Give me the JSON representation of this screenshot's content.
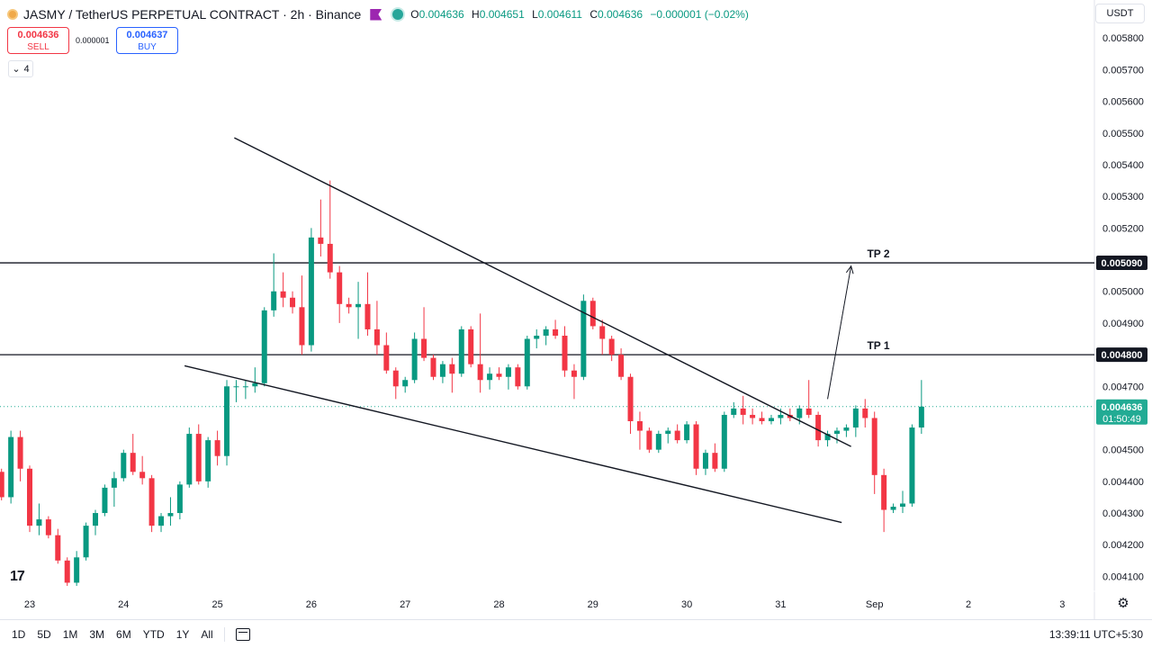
{
  "header": {
    "symbol_title": "JASMY / TetherUS PERPETUAL CONTRACT · 2h · Binance",
    "ohlc": [
      {
        "key": "O",
        "value": "0.004636"
      },
      {
        "key": "H",
        "value": "0.004651"
      },
      {
        "key": "L",
        "value": "0.004611"
      },
      {
        "key": "C",
        "value": "0.004636"
      },
      {
        "key": "",
        "value": "−0.000001 (−0.02%)"
      }
    ],
    "up_color": "#089981",
    "down_color": "#f23645"
  },
  "trade": {
    "sell_price": "0.004636",
    "sell_label": "SELL",
    "spread": "0.000001",
    "buy_price": "0.004637",
    "buy_label": "BUY"
  },
  "indicators_count": "4",
  "currency": "USDT",
  "bottom_bar": {
    "ranges": [
      "1D",
      "5D",
      "1M",
      "3M",
      "6M",
      "YTD",
      "1Y",
      "All"
    ],
    "clock": "13:39:11 UTC+5:30"
  },
  "chart_data": {
    "type": "candlestick",
    "timeframe": "2h",
    "x_ticks": [
      "23",
      "24",
      "25",
      "26",
      "27",
      "28",
      "29",
      "30",
      "31",
      "Sep",
      "2",
      "3"
    ],
    "y_ticks": [
      "0.005800",
      "0.005700",
      "0.005600",
      "0.005500",
      "0.005400",
      "0.005300",
      "0.005200",
      "0.005000",
      "0.004900",
      "0.004700",
      "0.004500",
      "0.004400",
      "0.004300",
      "0.004200",
      "0.004100"
    ],
    "ylim": [
      0.004,
      0.00592
    ],
    "grid": false,
    "horizontal_lines": [
      {
        "label": "TP 2",
        "price": 0.00509,
        "price_label": "0.005090"
      },
      {
        "label": "TP 1",
        "price": 0.0048,
        "price_label": "0.004800"
      }
    ],
    "current_price": {
      "price": 0.004636,
      "label": "0.004636",
      "countdown": "01:50:49",
      "color": "#22ab94"
    },
    "trendlines": [
      {
        "name": "upper",
        "from": {
          "day": 25.18,
          "price": 0.005485
        },
        "to": {
          "day": 31.75,
          "price": 0.00451
        }
      },
      {
        "name": "lower",
        "from": {
          "day": 24.65,
          "price": 0.004765
        },
        "to": {
          "day": 31.65,
          "price": 0.00427
        }
      }
    ],
    "projection_arrow": {
      "from": {
        "day": 31.5,
        "price": 0.00466
      },
      "to": {
        "day": 31.75,
        "price": 0.00508
      }
    },
    "candles": [
      [
        22.7,
        0.00443,
        0.00444,
        0.00434,
        0.00435
      ],
      [
        22.8,
        0.00435,
        0.00456,
        0.00433,
        0.00454
      ],
      [
        22.9,
        0.00454,
        0.00456,
        0.0044,
        0.00444
      ],
      [
        23.0,
        0.00444,
        0.00445,
        0.00424,
        0.00426
      ],
      [
        23.1,
        0.00426,
        0.00433,
        0.00423,
        0.00428
      ],
      [
        23.2,
        0.00428,
        0.00429,
        0.00422,
        0.00423
      ],
      [
        23.3,
        0.00423,
        0.00425,
        0.00414,
        0.00415
      ],
      [
        23.4,
        0.00415,
        0.00416,
        0.00407,
        0.00408
      ],
      [
        23.5,
        0.00408,
        0.00418,
        0.00407,
        0.00416
      ],
      [
        23.6,
        0.00416,
        0.00427,
        0.00415,
        0.00426
      ],
      [
        23.7,
        0.00426,
        0.00431,
        0.00423,
        0.0043
      ],
      [
        23.8,
        0.0043,
        0.00439,
        0.00429,
        0.00438
      ],
      [
        23.9,
        0.00438,
        0.00443,
        0.00432,
        0.00441
      ],
      [
        24.0,
        0.00441,
        0.0045,
        0.0044,
        0.00449
      ],
      [
        24.1,
        0.00449,
        0.00455,
        0.00442,
        0.00443
      ],
      [
        24.2,
        0.00443,
        0.00448,
        0.00439,
        0.00441
      ],
      [
        24.3,
        0.00441,
        0.00442,
        0.00424,
        0.00426
      ],
      [
        24.4,
        0.00426,
        0.0043,
        0.00424,
        0.00429
      ],
      [
        24.5,
        0.00429,
        0.00435,
        0.00426,
        0.0043
      ],
      [
        24.6,
        0.0043,
        0.0044,
        0.00428,
        0.00439
      ],
      [
        24.7,
        0.00439,
        0.00457,
        0.00438,
        0.00455
      ],
      [
        24.8,
        0.00455,
        0.00458,
        0.00439,
        0.0044
      ],
      [
        24.9,
        0.0044,
        0.00454,
        0.00438,
        0.00453
      ],
      [
        25.0,
        0.00453,
        0.00456,
        0.00445,
        0.00448
      ],
      [
        25.1,
        0.00448,
        0.00472,
        0.00445,
        0.0047
      ],
      [
        25.2,
        0.0047,
        0.00472,
        0.00465,
        0.0047
      ],
      [
        25.3,
        0.0047,
        0.00472,
        0.00466,
        0.0047
      ],
      [
        25.4,
        0.0047,
        0.00476,
        0.00468,
        0.00471
      ],
      [
        25.5,
        0.00471,
        0.00495,
        0.0047,
        0.00494
      ],
      [
        25.6,
        0.00494,
        0.00512,
        0.00492,
        0.005
      ],
      [
        25.7,
        0.005,
        0.00506,
        0.00495,
        0.00498
      ],
      [
        25.8,
        0.00498,
        0.005,
        0.00493,
        0.00495
      ],
      [
        25.9,
        0.00495,
        0.00505,
        0.0048,
        0.00483
      ],
      [
        26.0,
        0.00483,
        0.0052,
        0.00481,
        0.00517
      ],
      [
        26.1,
        0.00517,
        0.00529,
        0.00511,
        0.00515
      ],
      [
        26.2,
        0.00515,
        0.00535,
        0.00504,
        0.00506
      ],
      [
        26.3,
        0.00506,
        0.00508,
        0.0049,
        0.00496
      ],
      [
        26.4,
        0.00496,
        0.00498,
        0.00493,
        0.00495
      ],
      [
        26.5,
        0.00495,
        0.00503,
        0.00485,
        0.00496
      ],
      [
        26.6,
        0.00496,
        0.00506,
        0.00486,
        0.00488
      ],
      [
        26.7,
        0.00488,
        0.00497,
        0.0048,
        0.00483
      ],
      [
        26.8,
        0.00483,
        0.00487,
        0.00474,
        0.00475
      ],
      [
        26.9,
        0.00475,
        0.00476,
        0.00466,
        0.0047
      ],
      [
        27.0,
        0.0047,
        0.00473,
        0.00468,
        0.00472
      ],
      [
        27.1,
        0.00472,
        0.00487,
        0.00471,
        0.00485
      ],
      [
        27.2,
        0.00485,
        0.00495,
        0.00478,
        0.00479
      ],
      [
        27.3,
        0.00479,
        0.0048,
        0.00472,
        0.00473
      ],
      [
        27.4,
        0.00473,
        0.00478,
        0.00471,
        0.00477
      ],
      [
        27.5,
        0.00477,
        0.00479,
        0.00468,
        0.00474
      ],
      [
        27.6,
        0.00474,
        0.00489,
        0.00473,
        0.00488
      ],
      [
        27.7,
        0.00488,
        0.00489,
        0.00476,
        0.00477
      ],
      [
        27.8,
        0.00477,
        0.00493,
        0.00468,
        0.00472
      ],
      [
        27.9,
        0.00472,
        0.00476,
        0.00469,
        0.00474
      ],
      [
        28.0,
        0.00474,
        0.00476,
        0.00472,
        0.00473
      ],
      [
        28.1,
        0.00473,
        0.00477,
        0.00469,
        0.00476
      ],
      [
        28.2,
        0.00476,
        0.00477,
        0.00469,
        0.0047
      ],
      [
        28.3,
        0.0047,
        0.00486,
        0.00469,
        0.00485
      ],
      [
        28.4,
        0.00485,
        0.00488,
        0.00482,
        0.00486
      ],
      [
        28.5,
        0.00486,
        0.00489,
        0.00483,
        0.00488
      ],
      [
        28.6,
        0.00488,
        0.00491,
        0.00485,
        0.00486
      ],
      [
        28.7,
        0.00486,
        0.00489,
        0.00473,
        0.00475
      ],
      [
        28.8,
        0.00475,
        0.00477,
        0.00466,
        0.00473
      ],
      [
        28.9,
        0.00473,
        0.00499,
        0.00472,
        0.00497
      ],
      [
        29.0,
        0.00497,
        0.00498,
        0.00488,
        0.00489
      ],
      [
        29.1,
        0.00489,
        0.00491,
        0.0048,
        0.00485
      ],
      [
        29.2,
        0.00485,
        0.00486,
        0.00478,
        0.0048
      ],
      [
        29.3,
        0.0048,
        0.00482,
        0.00472,
        0.00473
      ],
      [
        29.4,
        0.00473,
        0.00474,
        0.00455,
        0.00459
      ],
      [
        29.5,
        0.00459,
        0.00462,
        0.0045,
        0.00456
      ],
      [
        29.6,
        0.00456,
        0.00457,
        0.00449,
        0.0045
      ],
      [
        29.7,
        0.0045,
        0.00456,
        0.00449,
        0.00455
      ],
      [
        29.8,
        0.00455,
        0.00457,
        0.00452,
        0.00456
      ],
      [
        29.9,
        0.00456,
        0.00458,
        0.00452,
        0.00453
      ],
      [
        30.0,
        0.00453,
        0.00459,
        0.00452,
        0.00458
      ],
      [
        30.1,
        0.00458,
        0.00459,
        0.00442,
        0.00444
      ],
      [
        30.2,
        0.00444,
        0.0045,
        0.00442,
        0.00449
      ],
      [
        30.3,
        0.00449,
        0.00452,
        0.00443,
        0.00444
      ],
      [
        30.4,
        0.00444,
        0.00462,
        0.00443,
        0.00461
      ],
      [
        30.5,
        0.00461,
        0.00465,
        0.0046,
        0.00463
      ],
      [
        30.6,
        0.00463,
        0.00467,
        0.00458,
        0.00461
      ],
      [
        30.7,
        0.00461,
        0.00463,
        0.00458,
        0.0046
      ],
      [
        30.8,
        0.0046,
        0.00462,
        0.00458,
        0.00459
      ],
      [
        30.9,
        0.00459,
        0.00461,
        0.00458,
        0.0046
      ],
      [
        31.0,
        0.0046,
        0.00463,
        0.00458,
        0.00461
      ],
      [
        31.1,
        0.00461,
        0.00463,
        0.00459,
        0.0046
      ],
      [
        31.2,
        0.0046,
        0.00464,
        0.00458,
        0.00463
      ],
      [
        31.3,
        0.00463,
        0.00472,
        0.0046,
        0.00461
      ],
      [
        31.4,
        0.00461,
        0.00462,
        0.00451,
        0.00453
      ],
      [
        31.5,
        0.00453,
        0.00456,
        0.00451,
        0.00455
      ],
      [
        31.6,
        0.00455,
        0.00457,
        0.00452,
        0.00456
      ],
      [
        31.7,
        0.00456,
        0.00458,
        0.00454,
        0.00457
      ],
      [
        31.8,
        0.00457,
        0.00464,
        0.00454,
        0.00463
      ],
      [
        31.9,
        0.00463,
        0.00466,
        0.00457,
        0.0046
      ],
      [
        32.0,
        0.0046,
        0.00462,
        0.00436,
        0.00442
      ],
      [
        32.1,
        0.00442,
        0.00444,
        0.00424,
        0.00431
      ],
      [
        32.2,
        0.00431,
        0.00433,
        0.0043,
        0.00432
      ],
      [
        32.3,
        0.00432,
        0.00437,
        0.0043,
        0.00433
      ],
      [
        32.4,
        0.00433,
        0.00458,
        0.00432,
        0.00457
      ],
      [
        32.5,
        0.00457,
        0.00472,
        0.00455,
        0.004636
      ]
    ]
  }
}
